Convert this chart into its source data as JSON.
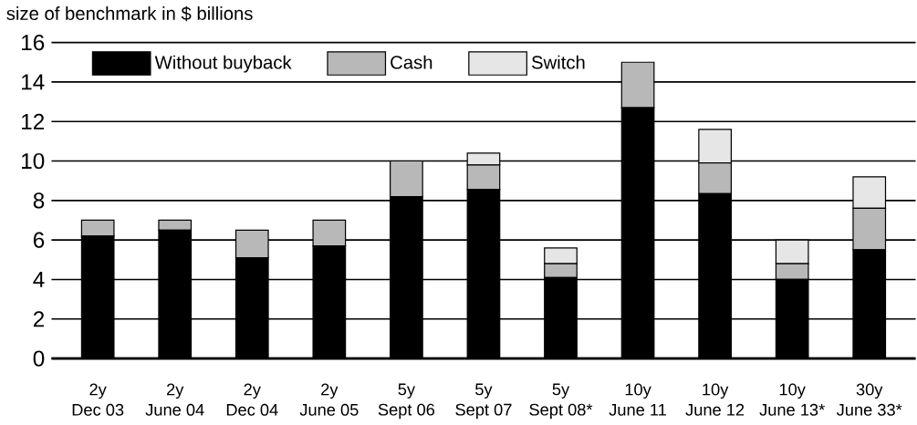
{
  "chart_data": {
    "type": "bar",
    "stacked": true,
    "ylabel": "size of benchmark in $ billions",
    "categories": [
      "2y\nDec 03",
      "2y\nJune 04",
      "2y\nDec 04",
      "2y\nJune 05",
      "5y\nSept 06",
      "5y\nSept 07",
      "5y\nSept 08*",
      "10y\nJune 11",
      "10y\nJune 12",
      "10y\nJune 13*",
      "30y\nJune 33*"
    ],
    "series": [
      {
        "name": "Without buyback",
        "color": "#000000",
        "values": [
          6.2,
          6.5,
          5.1,
          5.7,
          8.2,
          8.55,
          4.1,
          12.7,
          8.35,
          4.0,
          5.5
        ]
      },
      {
        "name": "Cash",
        "color": "#b8b8b8",
        "values": [
          0.8,
          0.5,
          1.4,
          1.3,
          1.8,
          1.25,
          0.7,
          2.3,
          1.55,
          0.8,
          2.1
        ]
      },
      {
        "name": "Switch",
        "color": "#e6e6e6",
        "values": [
          null,
          null,
          null,
          null,
          null,
          0.6,
          0.8,
          null,
          1.7,
          1.2,
          1.6
        ]
      }
    ],
    "ylim": [
      0,
      16
    ],
    "yticks": [
      0,
      2,
      4,
      6,
      8,
      10,
      12,
      14,
      16
    ],
    "grid": "y",
    "legend": "top"
  }
}
